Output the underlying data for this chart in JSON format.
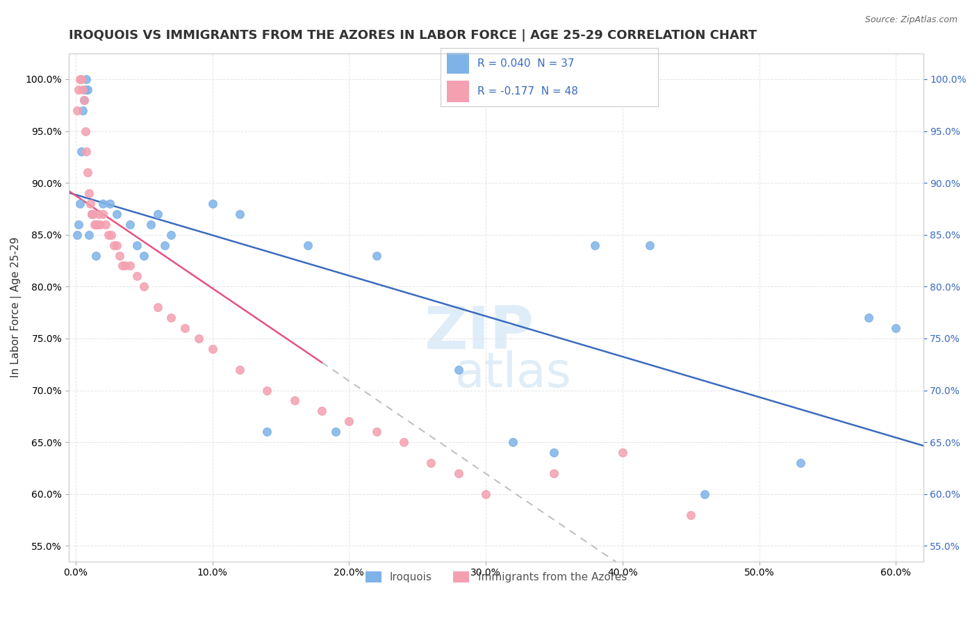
{
  "title": "IROQUOIS VS IMMIGRANTS FROM THE AZORES IN LABOR FORCE | AGE 25-29 CORRELATION CHART",
  "source": "Source: ZipAtlas.com",
  "xlabel": "",
  "ylabel": "In Labor Force | Age 25-29",
  "legend_labels": [
    "Iroquois",
    "Immigrants from the Azores"
  ],
  "legend_r_labels": [
    "R = 0.040  N = 37",
    "R = -0.177  N = 48"
  ],
  "iroquois_color": "#7fb3e8",
  "azores_color": "#f4a0b0",
  "iroquois_line_color": "#3a6bbf",
  "azores_line_color": "#e85080",
  "xlim": [
    -0.005,
    0.62
  ],
  "ylim": [
    0.535,
    1.025
  ],
  "yticks": [
    0.55,
    0.6,
    0.65,
    0.7,
    0.75,
    0.8,
    0.85,
    0.9,
    0.95,
    1.0
  ],
  "xticks": [
    0.0,
    0.1,
    0.2,
    0.3,
    0.4,
    0.5,
    0.6
  ],
  "iroquois_x": [
    0.001,
    0.002,
    0.003,
    0.004,
    0.005,
    0.006,
    0.007,
    0.008,
    0.009,
    0.01,
    0.012,
    0.015,
    0.02,
    0.025,
    0.03,
    0.04,
    0.045,
    0.05,
    0.055,
    0.06,
    0.065,
    0.07,
    0.1,
    0.12,
    0.14,
    0.17,
    0.19,
    0.22,
    0.28,
    0.32,
    0.35,
    0.38,
    0.42,
    0.46,
    0.53,
    0.58,
    0.6
  ],
  "iroquois_y": [
    0.85,
    0.86,
    0.88,
    0.93,
    0.97,
    0.98,
    0.99,
    1.0,
    0.99,
    0.85,
    0.87,
    0.83,
    0.88,
    0.88,
    0.87,
    0.86,
    0.84,
    0.83,
    0.86,
    0.87,
    0.84,
    0.85,
    0.88,
    0.87,
    0.66,
    0.84,
    0.66,
    0.83,
    0.72,
    0.65,
    0.64,
    0.84,
    0.84,
    0.6,
    0.63,
    0.77,
    0.76
  ],
  "azores_x": [
    0.001,
    0.002,
    0.003,
    0.004,
    0.005,
    0.006,
    0.007,
    0.008,
    0.009,
    0.01,
    0.011,
    0.012,
    0.013,
    0.014,
    0.015,
    0.016,
    0.017,
    0.018,
    0.02,
    0.022,
    0.024,
    0.026,
    0.028,
    0.03,
    0.032,
    0.034,
    0.036,
    0.04,
    0.045,
    0.05,
    0.06,
    0.07,
    0.08,
    0.09,
    0.1,
    0.12,
    0.14,
    0.16,
    0.18,
    0.2,
    0.22,
    0.24,
    0.26,
    0.28,
    0.3,
    0.35,
    0.4,
    0.45
  ],
  "azores_y": [
    0.97,
    0.99,
    1.0,
    1.0,
    0.99,
    0.98,
    0.95,
    0.93,
    0.91,
    0.89,
    0.88,
    0.87,
    0.87,
    0.86,
    0.86,
    0.86,
    0.87,
    0.86,
    0.87,
    0.86,
    0.85,
    0.85,
    0.84,
    0.84,
    0.83,
    0.82,
    0.82,
    0.82,
    0.81,
    0.8,
    0.78,
    0.77,
    0.76,
    0.75,
    0.74,
    0.72,
    0.7,
    0.69,
    0.68,
    0.67,
    0.66,
    0.65,
    0.63,
    0.62,
    0.6,
    0.62,
    0.64,
    0.58
  ],
  "title_fontsize": 13,
  "axis_label_fontsize": 11,
  "tick_fontsize": 10,
  "marker_size": 10,
  "marker_edge_width": 1.0
}
